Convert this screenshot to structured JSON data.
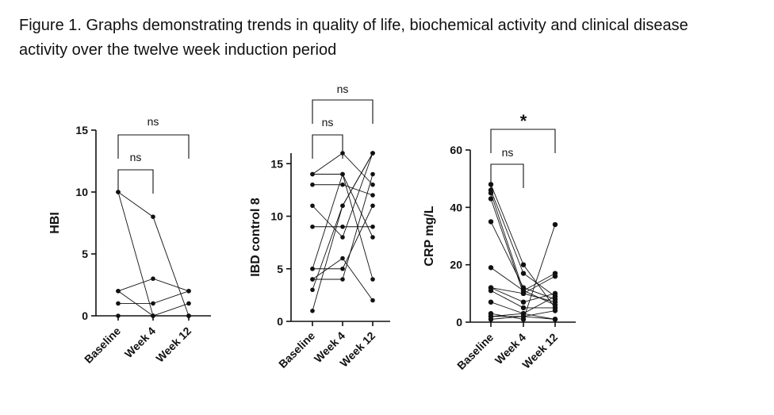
{
  "caption": {
    "line1": "Figure 1. Graphs demonstrating trends in quality of life, biochemical activity and clinical disease",
    "line2": "activity over the twelve week induction period"
  },
  "chart_data": [
    {
      "type": "line",
      "ylabel": "HBI",
      "categories": [
        "Baseline",
        "Week 4",
        "Week 12"
      ],
      "ylim": [
        0,
        15
      ],
      "yticks": [
        0,
        5,
        10,
        15
      ],
      "series": [
        {
          "values": [
            10,
            8,
            0
          ]
        },
        {
          "values": [
            10,
            0,
            1
          ]
        },
        {
          "values": [
            2,
            3,
            2
          ]
        },
        {
          "values": [
            1,
            1,
            2
          ]
        },
        {
          "values": [
            2,
            0,
            0
          ]
        },
        {
          "values": [
            0,
            0,
            0
          ]
        }
      ],
      "comparisons": [
        {
          "from": "Baseline",
          "to": "Week 4",
          "label": "ns"
        },
        {
          "from": "Baseline",
          "to": "Week 12",
          "label": "ns"
        }
      ]
    },
    {
      "type": "line",
      "ylabel": "IBD control 8",
      "categories": [
        "Baseline",
        "Week 4",
        "Week 12"
      ],
      "ylim": [
        0,
        16
      ],
      "yticks": [
        0,
        5,
        10,
        15
      ],
      "series": [
        {
          "values": [
            14,
            14,
            8
          ]
        },
        {
          "values": [
            14,
            16,
            13
          ]
        },
        {
          "values": [
            13,
            13,
            12
          ]
        },
        {
          "values": [
            11,
            8,
            16
          ]
        },
        {
          "values": [
            9,
            9,
            9
          ]
        },
        {
          "values": [
            5,
            14,
            4
          ]
        },
        {
          "values": [
            5,
            5,
            11
          ]
        },
        {
          "values": [
            4,
            4,
            14
          ]
        },
        {
          "values": [
            4,
            6,
            2
          ]
        },
        {
          "values": [
            3,
            11,
            16
          ]
        },
        {
          "values": [
            1,
            11,
            16
          ]
        }
      ],
      "comparisons": [
        {
          "from": "Baseline",
          "to": "Week 4",
          "label": "ns"
        },
        {
          "from": "Baseline",
          "to": "Week 12",
          "label": "ns"
        }
      ]
    },
    {
      "type": "line",
      "ylabel": "CRP mg/L",
      "categories": [
        "Baseline",
        "Week 4",
        "Week 12"
      ],
      "ylim": [
        0,
        60
      ],
      "yticks": [
        0,
        20,
        40,
        60
      ],
      "series": [
        {
          "values": [
            48,
            20,
            5
          ]
        },
        {
          "values": [
            46,
            17,
            9
          ]
        },
        {
          "values": [
            45,
            11,
            6
          ]
        },
        {
          "values": [
            43,
            10,
            7
          ]
        },
        {
          "values": [
            35,
            12,
            8
          ]
        },
        {
          "values": [
            19,
            11,
            17
          ]
        },
        {
          "values": [
            12,
            10,
            16
          ]
        },
        {
          "values": [
            12,
            7,
            10
          ]
        },
        {
          "values": [
            11,
            5,
            5
          ]
        },
        {
          "values": [
            7,
            3,
            9
          ]
        },
        {
          "values": [
            3,
            1,
            34
          ]
        },
        {
          "values": [
            2,
            2,
            4
          ]
        },
        {
          "values": [
            2,
            3,
            1
          ]
        },
        {
          "values": [
            1,
            2,
            1
          ]
        }
      ],
      "comparisons": [
        {
          "from": "Baseline",
          "to": "Week 4",
          "label": "ns"
        },
        {
          "from": "Baseline",
          "to": "Week 12",
          "label": "*"
        }
      ]
    }
  ]
}
